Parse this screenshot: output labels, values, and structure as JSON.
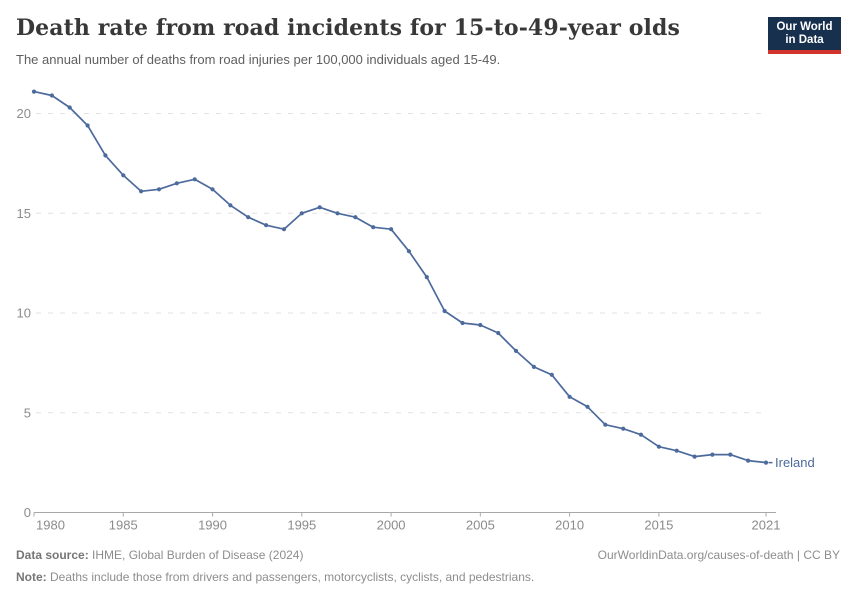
{
  "header": {
    "title": "Death rate from road incidents for 15-to-49-year olds",
    "subtitle": "The annual number of deaths from road injuries per 100,000 individuals aged 15-49.",
    "logo": {
      "line1": "Our World",
      "line2": "in Data"
    }
  },
  "chart_data": {
    "type": "line",
    "title": "Death rate from road incidents for 15-to-49-year olds",
    "xlabel": "",
    "ylabel": "",
    "x": [
      1980,
      1981,
      1982,
      1983,
      1984,
      1985,
      1986,
      1987,
      1988,
      1989,
      1990,
      1991,
      1992,
      1993,
      1994,
      1995,
      1996,
      1997,
      1998,
      1999,
      2000,
      2001,
      2002,
      2003,
      2004,
      2005,
      2006,
      2007,
      2008,
      2009,
      2010,
      2011,
      2012,
      2013,
      2014,
      2015,
      2016,
      2017,
      2018,
      2019,
      2020,
      2021
    ],
    "series": [
      {
        "name": "Ireland",
        "color": "#4c6a9c",
        "values": [
          21.1,
          20.9,
          20.3,
          19.4,
          17.9,
          16.9,
          16.1,
          16.2,
          16.5,
          16.7,
          16.2,
          15.4,
          14.8,
          14.4,
          14.2,
          15.0,
          15.3,
          15.0,
          14.8,
          14.3,
          14.2,
          13.1,
          11.8,
          10.1,
          9.5,
          9.4,
          9.0,
          8.1,
          7.3,
          6.9,
          5.8,
          5.3,
          4.4,
          4.2,
          3.9,
          3.3,
          3.1,
          2.8,
          2.9,
          2.9,
          2.6,
          2.5
        ]
      }
    ],
    "x_ticks": [
      1980,
      1985,
      1990,
      1995,
      2000,
      2005,
      2010,
      2015,
      2021
    ],
    "y_ticks": [
      0,
      5,
      10,
      15,
      20
    ],
    "xlim": [
      1980,
      2021
    ],
    "ylim": [
      0,
      21.5
    ],
    "grid": "horizontal dashed",
    "legend": "line-end label",
    "end_label": "Ireland"
  },
  "footer": {
    "source_label": "Data source:",
    "source_text": " IHME, Global Burden of Disease (2024)",
    "note_label": "Note:",
    "note_text": " Deaths include those from drivers and passengers, motorcyclists, cyclists, and pedestrians.",
    "right_text": "OurWorldinData.org/causes-of-death | CC BY"
  },
  "colors": {
    "line": "#4c6a9c",
    "grid": "#e2e2e2",
    "axis": "#a8a8a8",
    "tick_label": "#8b8b8b",
    "end_label": "#4c6a9c",
    "logo_bg": "#16304e",
    "logo_accent": "#d0342c"
  }
}
